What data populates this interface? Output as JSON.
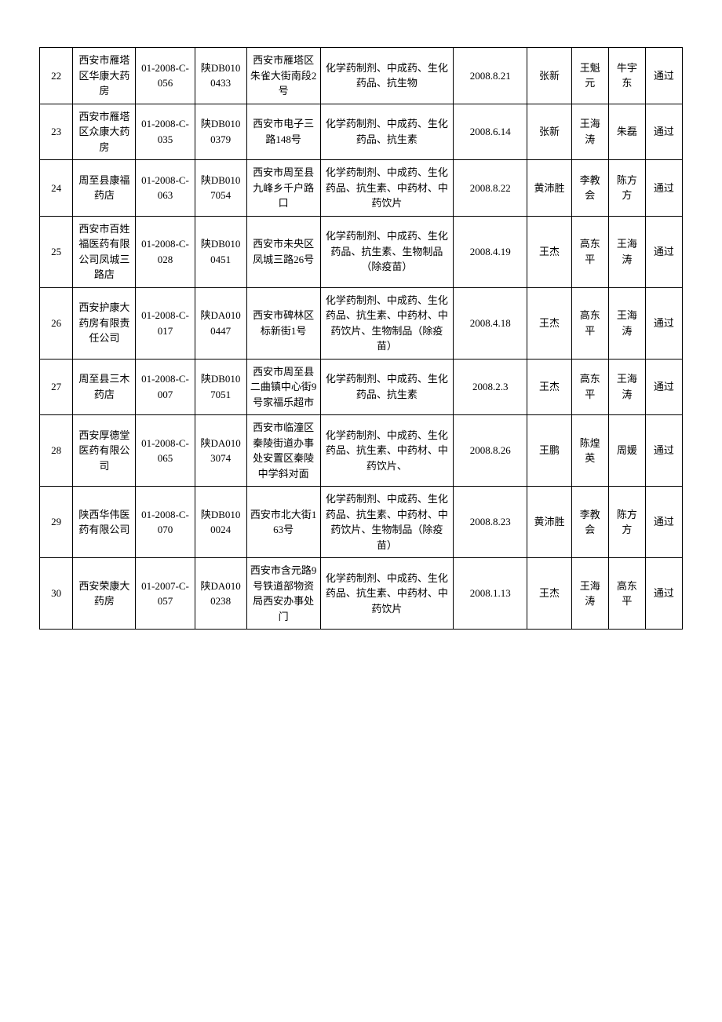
{
  "table": {
    "columns_widths": [
      "4.5%",
      "8.5%",
      "8%",
      "7%",
      "10%",
      "18%",
      "10%",
      "6%",
      "5%",
      "5%",
      "5%"
    ],
    "rows": [
      {
        "idx": "22",
        "company": "西安市雁塔区华康大药房",
        "code1": "01-2008-C-056",
        "code2": "陕DB0100433",
        "addr": "西安市雁塔区朱雀大街南段2号",
        "scope": "化学药制剂、中成药、生化药品、抗生物",
        "date": "2008.8.21",
        "p1": "张新",
        "p2": "王魁元",
        "p3": "牛宇东",
        "result": "通过"
      },
      {
        "idx": "23",
        "company": "西安市雁塔区众康大药房",
        "code1": "01-2008-C-035",
        "code2": "陕DB0100379",
        "addr": "西安市电子三路148号",
        "scope": "化学药制剂、中成药、生化药品、抗生素",
        "date": "2008.6.14",
        "p1": "张新",
        "p2": "王海涛",
        "p3": "朱磊",
        "result": "通过"
      },
      {
        "idx": "24",
        "company": "周至县康福药店",
        "code1": "01-2008-C-063",
        "code2": "陕DB0107054",
        "addr": "西安市周至县九峰乡千户路口",
        "scope": "化学药制剂、中成药、生化药品、抗生素、中药材、中药饮片",
        "date": "2008.8.22",
        "p1": "黄沛胜",
        "p2": "李教会",
        "p3": "陈方方",
        "result": "通过"
      },
      {
        "idx": "25",
        "company": "西安市百姓福医药有限公司凤城三路店",
        "code1": "01-2008-C-028",
        "code2": "陕DB0100451",
        "addr": "西安市未央区凤城三路26号",
        "scope": "化学药制剂、中成药、生化药品、抗生素、生物制品（除疫苗）",
        "date": "2008.4.19",
        "p1": "王杰",
        "p2": "高东平",
        "p3": "王海涛",
        "result": "通过"
      },
      {
        "idx": "26",
        "company": "西安护康大药房有限责任公司",
        "code1": "01-2008-C-017",
        "code2": "陕DA0100447",
        "addr": "西安市碑林区标新街1号",
        "scope": "化学药制剂、中成药、生化药品、抗生素、中药材、中药饮片、生物制品（除疫苗）",
        "date": "2008.4.18",
        "p1": "王杰",
        "p2": "高东平",
        "p3": "王海涛",
        "result": "通过"
      },
      {
        "idx": "27",
        "company": "周至县三木药店",
        "code1": "01-2008-C-007",
        "code2": "陕DB0107051",
        "addr": "西安市周至县二曲镇中心街9号家福乐超市",
        "scope": "化学药制剂、中成药、生化药品、抗生素",
        "date": "2008.2.3",
        "p1": "王杰",
        "p2": "高东平",
        "p3": "王海涛",
        "result": "通过"
      },
      {
        "idx": "28",
        "company": "西安厚德堂医药有限公司",
        "code1": "01-2008-C-065",
        "code2": "陕DA0103074",
        "addr": "西安市临潼区秦陵街道办事处安置区秦陵中学斜对面",
        "scope": "化学药制剂、中成药、生化药品、抗生素、中药材、中药饮片、",
        "date": "2008.8.26",
        "p1": "王鹏",
        "p2": "陈煌英",
        "p3": "周媛",
        "result": "通过"
      },
      {
        "idx": "29",
        "company": "陕西华伟医药有限公司",
        "code1": "01-2008-C-070",
        "code2": "陕DB0100024",
        "addr": "西安市北大街163号",
        "scope": "化学药制剂、中成药、生化药品、抗生素、中药材、中药饮片、生物制品（除疫苗）",
        "date": "2008.8.23",
        "p1": "黄沛胜",
        "p2": "李教会",
        "p3": "陈方方",
        "result": "通过"
      },
      {
        "idx": "30",
        "company": "西安荣康大药房",
        "code1": "01-2007-C-057",
        "code2": "陕DA0100238",
        "addr": "西安市含元路9号铁道部物资局西安办事处门",
        "scope": "化学药制剂、中成药、生化药品、抗生素、中药材、中药饮片",
        "date": "2008.1.13",
        "p1": "王杰",
        "p2": "王海涛",
        "p3": "高东平",
        "result": "通过"
      }
    ]
  }
}
